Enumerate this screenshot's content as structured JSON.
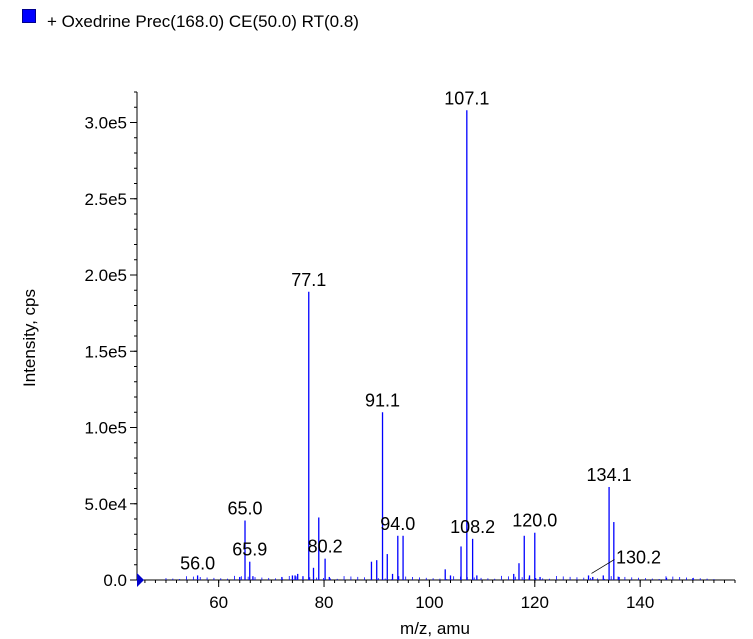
{
  "legend": {
    "label": "+ Oxedrine Prec(168.0) CE(50.0) RT(0.8)",
    "swatch_color": "#0000ff"
  },
  "chart_data": {
    "type": "bar",
    "title": "",
    "xlabel": "m/z, amu",
    "ylabel": "Intensity, cps",
    "xlim": [
      44.5,
      158
    ],
    "ylim": [
      0,
      320000
    ],
    "grid": false,
    "color": "#0000ff",
    "x_ticks": [
      {
        "v": 60,
        "t": "60"
      },
      {
        "v": 80,
        "t": "80"
      },
      {
        "v": 100,
        "t": "100"
      },
      {
        "v": 120,
        "t": "120"
      },
      {
        "v": 140,
        "t": "140"
      }
    ],
    "y_ticks": [
      {
        "v": 0,
        "t": "0.0"
      },
      {
        "v": 50000,
        "t": "5.0e4"
      },
      {
        "v": 100000,
        "t": "1.0e5"
      },
      {
        "v": 150000,
        "t": "1.5e5"
      },
      {
        "v": 200000,
        "t": "2.0e5"
      },
      {
        "v": 250000,
        "t": "2.5e5"
      },
      {
        "v": 300000,
        "t": "3.0e5"
      }
    ],
    "peaks": [
      {
        "x": 56.0,
        "y": 3000
      },
      {
        "x": 64.0,
        "y": 2000
      },
      {
        "x": 65.0,
        "y": 39000
      },
      {
        "x": 65.9,
        "y": 12000
      },
      {
        "x": 66.5,
        "y": 2500
      },
      {
        "x": 72.0,
        "y": 2000
      },
      {
        "x": 74.0,
        "y": 3000
      },
      {
        "x": 74.5,
        "y": 3000
      },
      {
        "x": 75.0,
        "y": 4000
      },
      {
        "x": 76.0,
        "y": 2500
      },
      {
        "x": 77.1,
        "y": 189000
      },
      {
        "x": 78.0,
        "y": 8000
      },
      {
        "x": 79.0,
        "y": 41000
      },
      {
        "x": 80.2,
        "y": 14000
      },
      {
        "x": 81.0,
        "y": 2000
      },
      {
        "x": 89.0,
        "y": 12000
      },
      {
        "x": 90.0,
        "y": 13000
      },
      {
        "x": 91.1,
        "y": 110000
      },
      {
        "x": 92.0,
        "y": 17000
      },
      {
        "x": 93.0,
        "y": 4000
      },
      {
        "x": 94.0,
        "y": 29000
      },
      {
        "x": 95.0,
        "y": 29000
      },
      {
        "x": 103.0,
        "y": 7000
      },
      {
        "x": 104.0,
        "y": 3000
      },
      {
        "x": 106.0,
        "y": 22000
      },
      {
        "x": 107.1,
        "y": 308000
      },
      {
        "x": 108.2,
        "y": 27000
      },
      {
        "x": 109.0,
        "y": 3000
      },
      {
        "x": 116.0,
        "y": 4000
      },
      {
        "x": 117.0,
        "y": 11000
      },
      {
        "x": 118.0,
        "y": 29000
      },
      {
        "x": 119.0,
        "y": 3000
      },
      {
        "x": 120.0,
        "y": 31000
      },
      {
        "x": 121.0,
        "y": 2000
      },
      {
        "x": 130.2,
        "y": 3000
      },
      {
        "x": 131.0,
        "y": 2000
      },
      {
        "x": 133.0,
        "y": 3000
      },
      {
        "x": 134.1,
        "y": 61000
      },
      {
        "x": 135.0,
        "y": 38000
      },
      {
        "x": 136.0,
        "y": 2000
      },
      {
        "x": 145.0,
        "y": 1500
      },
      {
        "x": 150.0,
        "y": 1200
      }
    ],
    "annotations": [
      {
        "x": 56.0,
        "y": 3000,
        "label": "56.0"
      },
      {
        "x": 65.0,
        "y": 39000,
        "label": "65.0"
      },
      {
        "x": 65.9,
        "y": 12000,
        "label": "65.9"
      },
      {
        "x": 77.1,
        "y": 189000,
        "label": "77.1"
      },
      {
        "x": 80.2,
        "y": 14000,
        "label": "80.2"
      },
      {
        "x": 91.1,
        "y": 110000,
        "label": "91.1"
      },
      {
        "x": 94.0,
        "y": 29000,
        "label": "94.0"
      },
      {
        "x": 107.1,
        "y": 308000,
        "label": "107.1"
      },
      {
        "x": 108.2,
        "y": 27000,
        "label": "108.2"
      },
      {
        "x": 120.0,
        "y": 31000,
        "label": "120.0"
      },
      {
        "x": 130.2,
        "y": 3000,
        "label": "130.2",
        "leader": true
      },
      {
        "x": 134.1,
        "y": 61000,
        "label": "134.1"
      }
    ]
  }
}
